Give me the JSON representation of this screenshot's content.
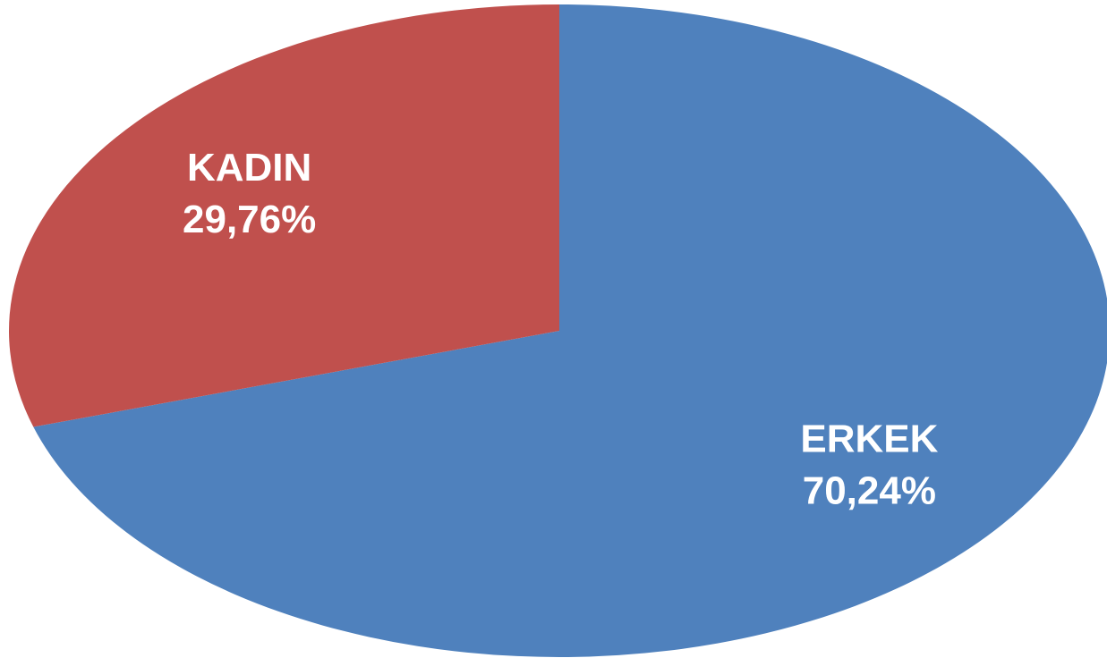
{
  "chart_data": {
    "type": "pie",
    "categories": [
      "ERKEK",
      "KADIN"
    ],
    "values": [
      70.24,
      29.76
    ],
    "value_labels": [
      "70,24%",
      "29,76%"
    ],
    "colors": [
      "#4f81bd",
      "#c0504d"
    ]
  }
}
